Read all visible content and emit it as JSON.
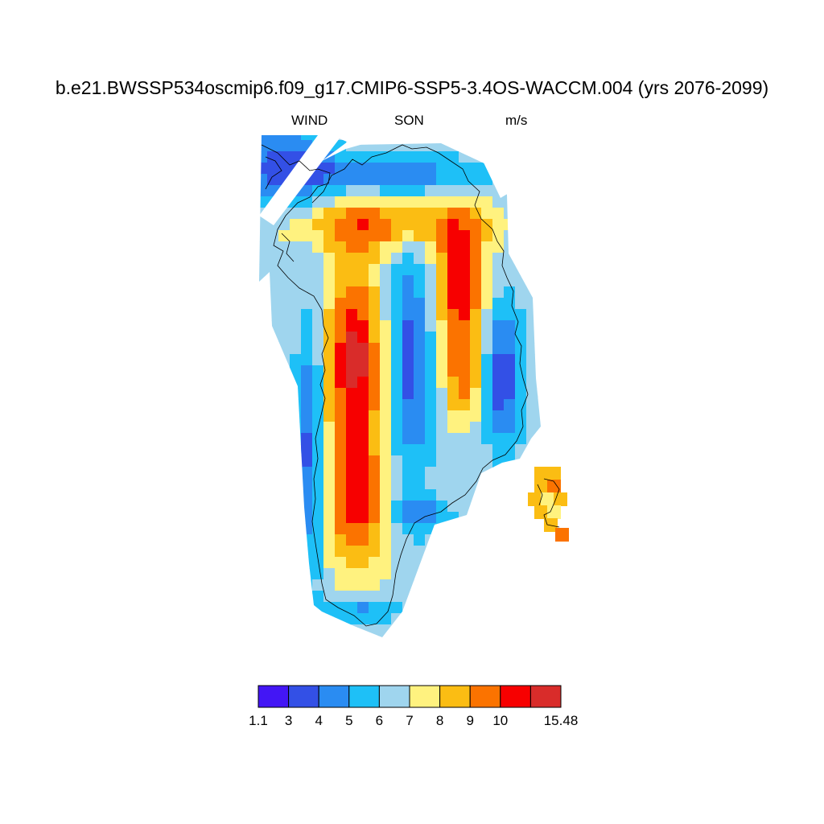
{
  "title": "b.e21.BWSSP534oscmip6.f09_g17.CMIP6-SSP5-3.4OS-WACCM.004 (yrs 2076-2099)",
  "left_string": "WIND",
  "center_string": "SON",
  "right_string": "m/s",
  "colorbar": {
    "labels": [
      "1.1",
      "3",
      "4",
      "5",
      "6",
      "7",
      "8",
      "9",
      "10",
      "15.48"
    ],
    "colors": [
      "#4316f5",
      "#3350e6",
      "#2a8cf2",
      "#1ec0f7",
      "#9fd5ee",
      "#fff27f",
      "#fbbd13",
      "#fb7300",
      "#f70000",
      "#d92c2a"
    ]
  }
}
